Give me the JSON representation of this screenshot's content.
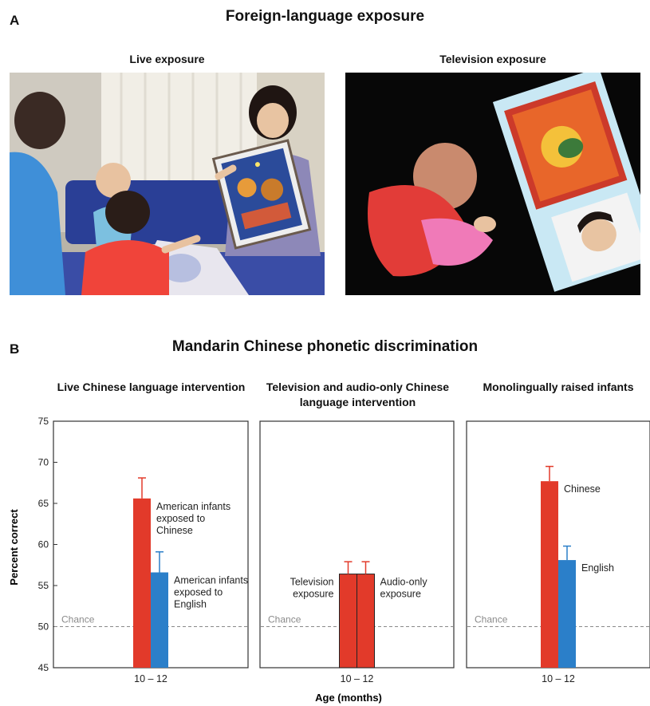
{
  "panel_a": {
    "letter": "A",
    "title": "Foreign-language exposure",
    "photos": [
      {
        "caption": "Live exposure"
      },
      {
        "caption": "Television exposure"
      }
    ]
  },
  "panel_b": {
    "letter": "B",
    "title": "Mandarin Chinese phonetic discrimination",
    "xlabel": "Age (months)",
    "ylabel": "Percent correct"
  },
  "colors": {
    "red": "#e23a2a",
    "blue": "#2b7fc9",
    "chance_line": "#8a8a8a"
  },
  "chart_data": [
    {
      "type": "bar",
      "title": "Live Chinese language intervention",
      "categories": [
        "10 – 12"
      ],
      "ylim": [
        45,
        75
      ],
      "yticks": [
        45,
        50,
        55,
        60,
        65,
        70,
        75
      ],
      "chance": {
        "label": "Chance",
        "value": 50
      },
      "series": [
        {
          "label": "American infants exposed to Chinese",
          "values": [
            65.6
          ],
          "error": [
            2.5
          ],
          "color": "red"
        },
        {
          "label": "American infants exposed to English",
          "values": [
            56.6
          ],
          "error": [
            2.5
          ],
          "color": "blue"
        }
      ]
    },
    {
      "type": "bar",
      "title": "Television and audio-only Chinese language intervention",
      "categories": [
        "10 – 12"
      ],
      "ylim": [
        45,
        75
      ],
      "chance": {
        "label": "Chance",
        "value": 50
      },
      "series": [
        {
          "label": "Television exposure",
          "values": [
            56.4
          ],
          "error": [
            1.5
          ],
          "color": "red"
        },
        {
          "label": "Audio-only exposure",
          "values": [
            56.4
          ],
          "error": [
            1.5
          ],
          "color": "red"
        }
      ]
    },
    {
      "type": "bar",
      "title": "Monolingually raised infants",
      "categories": [
        "10 – 12"
      ],
      "ylim": [
        45,
        75
      ],
      "chance": {
        "label": "Chance",
        "value": 50
      },
      "series": [
        {
          "label": "Chinese",
          "values": [
            67.7
          ],
          "error": [
            1.8
          ],
          "color": "red"
        },
        {
          "label": "English",
          "values": [
            58.1
          ],
          "error": [
            1.7
          ],
          "color": "blue"
        }
      ]
    }
  ]
}
